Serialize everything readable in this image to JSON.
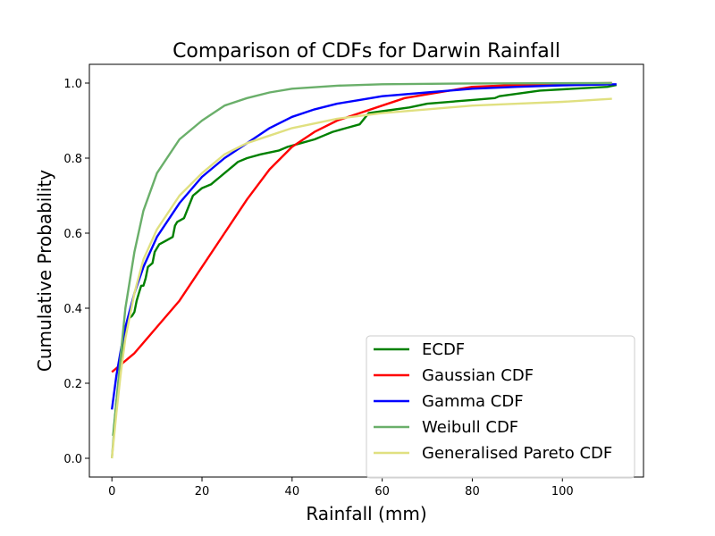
{
  "chart_data": {
    "type": "line",
    "title": "Comparison of CDFs for Darwin Rainfall",
    "xlabel": "Rainfall (mm)",
    "ylabel": "Cumulative Probability",
    "xlim": [
      -5,
      118
    ],
    "ylim": [
      -0.05,
      1.05
    ],
    "xticks": [
      0,
      20,
      40,
      60,
      80,
      100
    ],
    "yticks": [
      0.0,
      0.2,
      0.4,
      0.6,
      0.8,
      1.0
    ],
    "xtick_labels": [
      "0",
      "20",
      "40",
      "60",
      "80",
      "100"
    ],
    "ytick_labels": [
      "0.0",
      "0.2",
      "0.4",
      "0.6",
      "0.8",
      "1.0"
    ],
    "grid": false,
    "legend_position": "lower-right",
    "series": [
      {
        "name": "ECDF",
        "color": "#008000",
        "points": [
          [
            0.3,
            0.06
          ],
          [
            1,
            0.15
          ],
          [
            1.5,
            0.2
          ],
          [
            2,
            0.25
          ],
          [
            2.5,
            0.3
          ],
          [
            3,
            0.34
          ],
          [
            3.5,
            0.37
          ],
          [
            4.5,
            0.38
          ],
          [
            5,
            0.39
          ],
          [
            5.5,
            0.42
          ],
          [
            6,
            0.44
          ],
          [
            6.5,
            0.46
          ],
          [
            7,
            0.46
          ],
          [
            7.5,
            0.48
          ],
          [
            8,
            0.51
          ],
          [
            9,
            0.52
          ],
          [
            9.5,
            0.55
          ],
          [
            10.5,
            0.57
          ],
          [
            12,
            0.58
          ],
          [
            13.5,
            0.59
          ],
          [
            14,
            0.62
          ],
          [
            14.5,
            0.63
          ],
          [
            16,
            0.64
          ],
          [
            17,
            0.67
          ],
          [
            18,
            0.7
          ],
          [
            19,
            0.71
          ],
          [
            20,
            0.72
          ],
          [
            22,
            0.73
          ],
          [
            23,
            0.74
          ],
          [
            24,
            0.75
          ],
          [
            25,
            0.76
          ],
          [
            26,
            0.77
          ],
          [
            27,
            0.78
          ],
          [
            28,
            0.79
          ],
          [
            30,
            0.8
          ],
          [
            33,
            0.81
          ],
          [
            37,
            0.82
          ],
          [
            39,
            0.83
          ],
          [
            42,
            0.84
          ],
          [
            45,
            0.85
          ],
          [
            47,
            0.86
          ],
          [
            49,
            0.87
          ],
          [
            52,
            0.88
          ],
          [
            55,
            0.89
          ],
          [
            57,
            0.92
          ],
          [
            60,
            0.925
          ],
          [
            66,
            0.935
          ],
          [
            70,
            0.945
          ],
          [
            80,
            0.955
          ],
          [
            85,
            0.96
          ],
          [
            86,
            0.965
          ],
          [
            95,
            0.98
          ],
          [
            110,
            0.99
          ],
          [
            112,
            0.995
          ]
        ]
      },
      {
        "name": "Gaussian CDF",
        "color": "#ff0000",
        "points": [
          [
            0,
            0.23
          ],
          [
            5,
            0.28
          ],
          [
            10,
            0.35
          ],
          [
            15,
            0.42
          ],
          [
            20,
            0.51
          ],
          [
            25,
            0.6
          ],
          [
            30,
            0.69
          ],
          [
            35,
            0.77
          ],
          [
            40,
            0.83
          ],
          [
            45,
            0.87
          ],
          [
            50,
            0.9
          ],
          [
            55,
            0.92
          ],
          [
            60,
            0.94
          ],
          [
            65,
            0.96
          ],
          [
            70,
            0.97
          ],
          [
            80,
            0.99
          ],
          [
            90,
            0.995
          ],
          [
            100,
            0.998
          ],
          [
            111,
            1.0
          ]
        ]
      },
      {
        "name": "Gamma CDF",
        "color": "#0000ff",
        "points": [
          [
            0,
            0.13
          ],
          [
            1,
            0.22
          ],
          [
            2,
            0.29
          ],
          [
            3,
            0.35
          ],
          [
            5,
            0.44
          ],
          [
            7,
            0.51
          ],
          [
            10,
            0.59
          ],
          [
            15,
            0.68
          ],
          [
            20,
            0.75
          ],
          [
            25,
            0.8
          ],
          [
            30,
            0.84
          ],
          [
            35,
            0.88
          ],
          [
            40,
            0.91
          ],
          [
            45,
            0.93
          ],
          [
            50,
            0.945
          ],
          [
            55,
            0.955
          ],
          [
            60,
            0.965
          ],
          [
            70,
            0.975
          ],
          [
            80,
            0.985
          ],
          [
            90,
            0.99
          ],
          [
            100,
            0.994
          ],
          [
            112,
            0.997
          ]
        ]
      },
      {
        "name": "Weibull CDF",
        "color": "#6aaf6a",
        "points": [
          [
            0,
            0.0
          ],
          [
            1,
            0.15
          ],
          [
            2,
            0.28
          ],
          [
            3,
            0.4
          ],
          [
            5,
            0.55
          ],
          [
            7,
            0.66
          ],
          [
            10,
            0.76
          ],
          [
            15,
            0.85
          ],
          [
            20,
            0.9
          ],
          [
            25,
            0.94
          ],
          [
            30,
            0.96
          ],
          [
            35,
            0.975
          ],
          [
            40,
            0.985
          ],
          [
            50,
            0.993
          ],
          [
            60,
            0.997
          ],
          [
            80,
            0.999
          ],
          [
            111,
            1.0
          ]
        ]
      },
      {
        "name": "Generalised Pareto CDF",
        "color": "#e0e080",
        "points": [
          [
            0,
            0.0
          ],
          [
            1,
            0.12
          ],
          [
            2,
            0.23
          ],
          [
            3,
            0.32
          ],
          [
            5,
            0.44
          ],
          [
            7,
            0.53
          ],
          [
            10,
            0.61
          ],
          [
            15,
            0.7
          ],
          [
            20,
            0.76
          ],
          [
            25,
            0.81
          ],
          [
            30,
            0.84
          ],
          [
            35,
            0.86
          ],
          [
            40,
            0.88
          ],
          [
            50,
            0.905
          ],
          [
            60,
            0.92
          ],
          [
            70,
            0.93
          ],
          [
            80,
            0.94
          ],
          [
            90,
            0.945
          ],
          [
            100,
            0.95
          ],
          [
            111,
            0.958
          ]
        ]
      }
    ]
  }
}
